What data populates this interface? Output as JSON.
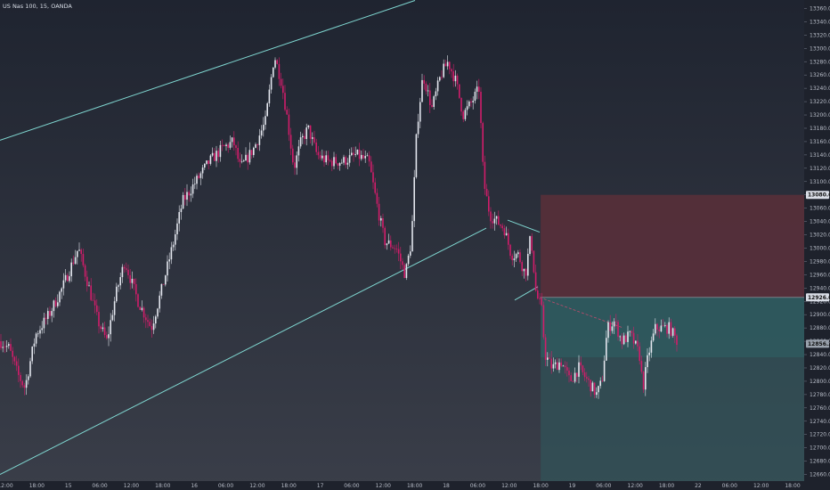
{
  "header": {
    "symbol_title": "US Nas 100, 15, OANDA"
  },
  "chart_data": {
    "type": "candlestick",
    "y_ticks": [
      "13360.0",
      "13340.0",
      "13320.0",
      "13300.0",
      "13280.0",
      "13260.0",
      "13240.0",
      "13220.0",
      "13200.0",
      "13180.0",
      "13160.0",
      "13140.0",
      "13120.0",
      "13100.0",
      "13080.0",
      "13060.0",
      "13040.0",
      "13020.0",
      "13000.0",
      "12980.0",
      "12960.0",
      "12940.0",
      "12920.0",
      "12900.0",
      "12880.0",
      "12860.0",
      "12840.0",
      "12820.0",
      "12800.0",
      "12780.0",
      "12760.0",
      "12740.0",
      "12720.0",
      "12700.0",
      "12680.0",
      "12660.0"
    ],
    "ylim": [
      12650,
      13370
    ],
    "x_ticks": [
      "12:00",
      "18:00",
      "15",
      "06:00",
      "12:00",
      "18:00",
      "16",
      "06:00",
      "12:00",
      "18:00",
      "17",
      "06:00",
      "12:00",
      "18:00",
      "18",
      "06:00",
      "12:00",
      "18:00",
      "19",
      "06:00",
      "12:00",
      "18:00",
      "22",
      "06:00",
      "12:00",
      "18:00"
    ],
    "price_tags": {
      "stop_loss": "13080.0",
      "entry": "12926.0",
      "current": "12856.2"
    },
    "trade_box": {
      "stop_loss": 13080,
      "entry": 12926,
      "target": 12836,
      "start_tick": "18:00",
      "end_tick": "18:00"
    },
    "channel_lines": [
      {
        "from": {
          "x": "12:00",
          "y": 13160
        },
        "to": {
          "x": "18:00",
          "y": 13372
        }
      },
      {
        "from": {
          "x": "12:00",
          "y": 12660
        },
        "to": {
          "x": "06:00",
          "y": 13022
        }
      }
    ],
    "colors": {
      "background_top": "#1f2430",
      "background_bottom": "#3a3e49",
      "up_candle": "#e3e6ee",
      "down_candle": "#d11d6a",
      "channel_line": "#7fd6d0",
      "stop_zone": "#5a2f3a",
      "target_zone": "#2f5b5f",
      "axis_text": "#b7bcc7"
    }
  }
}
